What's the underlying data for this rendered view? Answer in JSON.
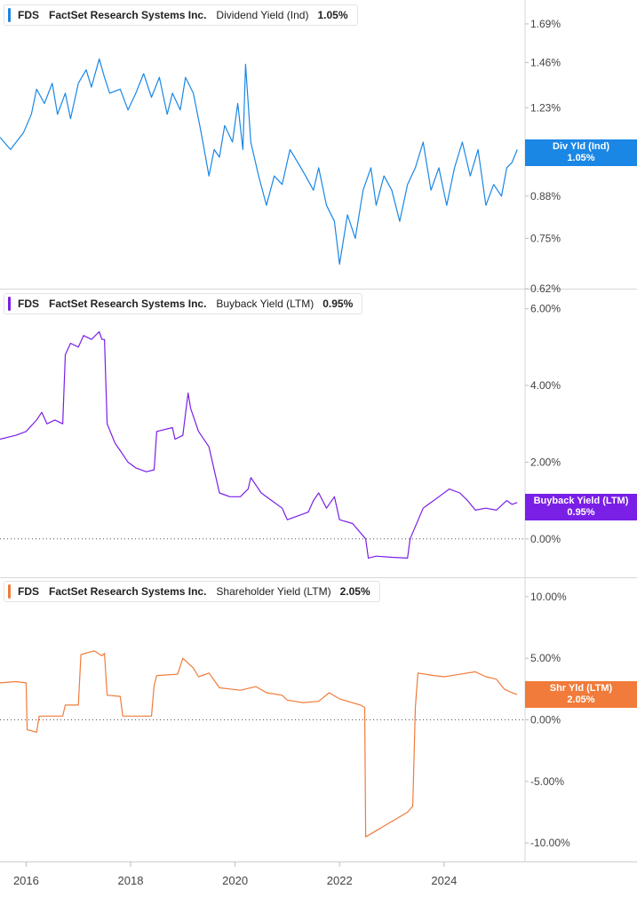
{
  "chart_data": [
    {
      "type": "line",
      "ticker": "FDS",
      "company": "FactSet Research Systems Inc.",
      "metric": "Dividend Yield (Ind)",
      "current_value": "1.05%",
      "badge_label": "Div Yld (Ind)",
      "badge_value": "1.05%",
      "color": "#1a87e5",
      "y_scale": "log",
      "yticks": [
        "1.69%",
        "1.46%",
        "1.23%",
        "1.05%",
        "0.88%",
        "0.75%",
        "0.62%"
      ],
      "ytick_values": [
        1.69,
        1.46,
        1.23,
        1.05,
        0.88,
        0.75,
        0.62
      ],
      "ylim": [
        0.62,
        1.85
      ],
      "series": [
        {
          "x": [
            2015.5,
            2015.7,
            2015.95,
            2016.1,
            2016.2,
            2016.35,
            2016.5,
            2016.6,
            2016.75,
            2016.85,
            2017.0,
            2017.15,
            2017.25,
            2017.4,
            2017.5,
            2017.6,
            2017.8,
            2017.95,
            2018.1,
            2018.25,
            2018.4,
            2018.55,
            2018.7,
            2018.8,
            2018.95,
            2019.05,
            2019.2,
            2019.35,
            2019.5,
            2019.6,
            2019.7,
            2019.8,
            2019.95,
            2020.05,
            2020.15,
            2020.2,
            2020.3,
            2020.45,
            2020.6,
            2020.75,
            2020.9,
            2021.05,
            2021.2,
            2021.35,
            2021.5,
            2021.6,
            2021.75,
            2021.9,
            2022.0,
            2022.15,
            2022.3,
            2022.45,
            2022.6,
            2022.7,
            2022.85,
            2023.0,
            2023.15,
            2023.3,
            2023.45,
            2023.6,
            2023.75,
            2023.9,
            2024.05,
            2024.2,
            2024.35,
            2024.5,
            2024.65,
            2024.8,
            2024.95,
            2025.1,
            2025.2,
            2025.3,
            2025.4
          ],
          "y": [
            1.1,
            1.05,
            1.12,
            1.2,
            1.32,
            1.25,
            1.35,
            1.2,
            1.3,
            1.18,
            1.35,
            1.42,
            1.33,
            1.48,
            1.38,
            1.3,
            1.32,
            1.22,
            1.3,
            1.4,
            1.28,
            1.38,
            1.2,
            1.3,
            1.22,
            1.38,
            1.3,
            1.12,
            0.95,
            1.05,
            1.02,
            1.15,
            1.08,
            1.25,
            1.05,
            1.45,
            1.08,
            0.95,
            0.85,
            0.95,
            0.92,
            1.05,
            1.0,
            0.95,
            0.9,
            0.98,
            0.85,
            0.8,
            0.68,
            0.82,
            0.75,
            0.9,
            0.98,
            0.85,
            0.95,
            0.9,
            0.8,
            0.92,
            0.98,
            1.08,
            0.9,
            0.98,
            0.85,
            0.98,
            1.08,
            0.95,
            1.05,
            0.85,
            0.92,
            0.88,
            0.98,
            1.0,
            1.05
          ]
        }
      ]
    },
    {
      "type": "line",
      "ticker": "FDS",
      "company": "FactSet Research Systems Inc.",
      "metric": "Buyback Yield (LTM)",
      "current_value": "0.95%",
      "badge_label": "Buyback Yield (LTM)",
      "badge_value": "0.95%",
      "color": "#7a1fe6",
      "yticks": [
        "6.00%",
        "4.00%",
        "2.00%",
        "0.00%"
      ],
      "ytick_values": [
        6,
        4,
        2,
        0
      ],
      "ylim": [
        -1.0,
        6.5
      ],
      "series": [
        {
          "x": [
            2015.5,
            2015.8,
            2016.0,
            2016.2,
            2016.3,
            2016.4,
            2016.55,
            2016.7,
            2016.75,
            2016.85,
            2017.0,
            2017.1,
            2017.25,
            2017.4,
            2017.45,
            2017.5,
            2017.55,
            2017.7,
            2017.8,
            2017.95,
            2018.1,
            2018.3,
            2018.45,
            2018.5,
            2018.8,
            2018.85,
            2019.0,
            2019.1,
            2019.15,
            2019.3,
            2019.5,
            2019.7,
            2019.9,
            2020.1,
            2020.25,
            2020.3,
            2020.5,
            2020.7,
            2020.9,
            2021.0,
            2021.2,
            2021.4,
            2021.5,
            2021.6,
            2021.75,
            2021.9,
            2022.0,
            2022.25,
            2022.5,
            2022.55,
            2022.7,
            2023.0,
            2023.3,
            2023.35,
            2023.6,
            2023.7,
            2023.9,
            2024.1,
            2024.3,
            2024.45,
            2024.6,
            2024.8,
            2025.0,
            2025.2,
            2025.3,
            2025.4
          ],
          "y": [
            2.6,
            2.7,
            2.8,
            3.1,
            3.3,
            3.0,
            3.1,
            3.0,
            4.8,
            5.1,
            5.0,
            5.3,
            5.2,
            5.4,
            5.2,
            5.2,
            3.0,
            2.5,
            2.3,
            2.0,
            1.85,
            1.75,
            1.8,
            2.8,
            2.9,
            2.6,
            2.7,
            3.8,
            3.4,
            2.8,
            2.4,
            1.2,
            1.1,
            1.1,
            1.3,
            1.6,
            1.2,
            1.0,
            0.8,
            0.5,
            0.6,
            0.7,
            1.0,
            1.2,
            0.8,
            1.1,
            0.5,
            0.4,
            0.0,
            -0.5,
            -0.45,
            -0.48,
            -0.5,
            0.0,
            0.8,
            0.9,
            1.1,
            1.3,
            1.2,
            1.0,
            0.75,
            0.8,
            0.75,
            1.0,
            0.9,
            0.95
          ]
        }
      ]
    },
    {
      "type": "line",
      "ticker": "FDS",
      "company": "FactSet Research Systems Inc.",
      "metric": "Shareholder Yield (LTM)",
      "current_value": "2.05%",
      "badge_label": "Shr Yld (LTM)",
      "badge_value": "2.05%",
      "color": "#f07b3a",
      "yticks": [
        "10.00%",
        "5.00%",
        "0.00%",
        "-5.00%",
        "-10.00%"
      ],
      "ytick_values": [
        10,
        5,
        0,
        -5,
        -10
      ],
      "ylim": [
        -11.5,
        11.5
      ],
      "series": [
        {
          "x": [
            2015.5,
            2015.8,
            2016.0,
            2016.02,
            2016.2,
            2016.25,
            2016.7,
            2016.75,
            2017.0,
            2017.05,
            2017.3,
            2017.45,
            2017.5,
            2017.55,
            2017.8,
            2017.85,
            2018.4,
            2018.45,
            2018.5,
            2018.9,
            2019.0,
            2019.2,
            2019.3,
            2019.5,
            2019.7,
            2019.9,
            2020.1,
            2020.4,
            2020.6,
            2020.9,
            2021.0,
            2021.3,
            2021.6,
            2021.8,
            2022.0,
            2022.4,
            2022.48,
            2022.5,
            2022.7,
            2022.9,
            2023.1,
            2023.3,
            2023.4,
            2023.45,
            2023.5,
            2023.8,
            2024.0,
            2024.3,
            2024.6,
            2024.8,
            2025.0,
            2025.15,
            2025.3,
            2025.4
          ],
          "y": [
            3.0,
            3.1,
            3.0,
            -0.8,
            -1.0,
            0.3,
            0.3,
            1.2,
            1.2,
            5.3,
            5.6,
            5.2,
            5.4,
            2.0,
            1.9,
            0.3,
            0.3,
            2.8,
            3.6,
            3.7,
            5.0,
            4.2,
            3.5,
            3.8,
            2.6,
            2.5,
            2.4,
            2.7,
            2.2,
            2.0,
            1.6,
            1.4,
            1.5,
            2.2,
            1.7,
            1.2,
            1.0,
            -9.5,
            -9.0,
            -8.5,
            -8.0,
            -7.5,
            -7.0,
            1.0,
            3.8,
            3.6,
            3.5,
            3.7,
            3.9,
            3.5,
            3.3,
            2.5,
            2.2,
            2.05
          ]
        }
      ]
    }
  ],
  "x_axis": {
    "ticks": [
      "2016",
      "2018",
      "2020",
      "2022",
      "2024"
    ],
    "tick_values": [
      2016,
      2018,
      2020,
      2022,
      2024
    ],
    "xlim": [
      2015.5,
      2025.55
    ]
  }
}
